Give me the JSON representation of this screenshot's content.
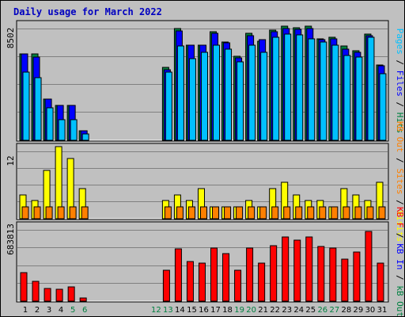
{
  "title": "Daily usage for March 2022",
  "colors": {
    "background": "#c0c0c0",
    "title": "#0000c0",
    "hits": "#008040",
    "files": "#0000ff",
    "pages": "#00c0ff",
    "visits": "#ffff00",
    "sites": "#ff8000",
    "kbytes": "#ff0000",
    "weekend_day_label": "#008040",
    "weekday_label": "#000000",
    "grid": "#808080",
    "out_label": "#ff8000",
    "in_label": "#0000ff"
  },
  "chart_data": [
    {
      "type": "bar",
      "panel": "hits-files-pages",
      "ymax_label": "8502",
      "ylim": [
        0,
        8502
      ],
      "right_labels": [
        "Pages",
        "Files",
        "Hits"
      ],
      "series": [
        {
          "name": "Hits",
          "values": [
            6300,
            6300,
            3030,
            2550,
            2550,
            715,
            0,
            0,
            0,
            0,
            0,
            0,
            5300,
            8150,
            6930,
            6930,
            7930,
            7200,
            6130,
            7830,
            7230,
            8030,
            8320,
            8200,
            8320,
            7430,
            7530,
            6880,
            6530,
            7730,
            5470
          ]
        },
        {
          "name": "Files",
          "values": [
            6300,
            6100,
            3030,
            2550,
            2550,
            715,
            0,
            0,
            0,
            0,
            0,
            0,
            5150,
            7960,
            6930,
            6930,
            7830,
            7100,
            6030,
            7630,
            7330,
            7930,
            8150,
            8100,
            8150,
            7330,
            7430,
            6680,
            6430,
            7630,
            5420
          ]
        },
        {
          "name": "Pages",
          "values": [
            5000,
            4580,
            2400,
            1480,
            1530,
            460,
            0,
            0,
            0,
            0,
            0,
            0,
            4970,
            6870,
            5980,
            6400,
            6960,
            6630,
            5700,
            6960,
            6400,
            7490,
            7730,
            7690,
            7430,
            7180,
            6930,
            6200,
            6070,
            7500,
            4880
          ]
        }
      ]
    },
    {
      "type": "bar",
      "panel": "visits-sites",
      "ymax_label": "12",
      "ylim": [
        0,
        12
      ],
      "right_labels": [
        "Visits",
        "Sites",
        "KB Out"
      ],
      "series": [
        {
          "name": "Visits",
          "values": [
            4,
            3,
            8,
            12,
            10,
            5,
            0,
            0,
            0,
            0,
            0,
            0,
            3,
            4,
            3,
            5,
            2,
            2,
            2,
            3,
            2,
            5,
            6,
            4,
            3,
            3,
            2,
            5,
            4,
            3,
            6
          ]
        },
        {
          "name": "Sites",
          "values": [
            2,
            2,
            2,
            2,
            2,
            2,
            0,
            0,
            0,
            0,
            0,
            0,
            2,
            2,
            2,
            2,
            2,
            2,
            2,
            2,
            2,
            2,
            2,
            2,
            2,
            2,
            2,
            2,
            2,
            2,
            2
          ]
        }
      ]
    },
    {
      "type": "bar",
      "panel": "kbytes",
      "ymax_label": "683813",
      "ylim": [
        0,
        683813
      ],
      "right_labels": [
        "KB F",
        "KB In"
      ],
      "series": [
        {
          "name": "KB F",
          "values": [
            255000,
            180000,
            117000,
            108000,
            128000,
            28000,
            0,
            0,
            0,
            0,
            0,
            0,
            280000,
            468000,
            355000,
            342000,
            480000,
            428000,
            280000,
            478000,
            340000,
            498000,
            580000,
            550000,
            580000,
            495000,
            480000,
            375000,
            445000,
            630000,
            340000
          ]
        }
      ]
    }
  ],
  "x_axis": {
    "days": [
      "1",
      "2",
      "3",
      "4",
      "5",
      "6",
      "7",
      "8",
      "9",
      "10",
      "11",
      "12",
      "13",
      "14",
      "15",
      "16",
      "17",
      "18",
      "19",
      "20",
      "21",
      "22",
      "23",
      "24",
      "25",
      "26",
      "27",
      "28",
      "29",
      "30",
      "31"
    ],
    "visible_labels": [
      "1",
      "2",
      "3",
      "4",
      "5",
      "6",
      "12",
      "13",
      "14",
      "15",
      "16",
      "17",
      "18",
      "19",
      "20",
      "21",
      "22",
      "23",
      "24",
      "25",
      "26",
      "27",
      "28",
      "29",
      "30",
      "31"
    ],
    "weekend_days": [
      "5",
      "6",
      "12",
      "13",
      "19",
      "20",
      "26",
      "27"
    ]
  }
}
